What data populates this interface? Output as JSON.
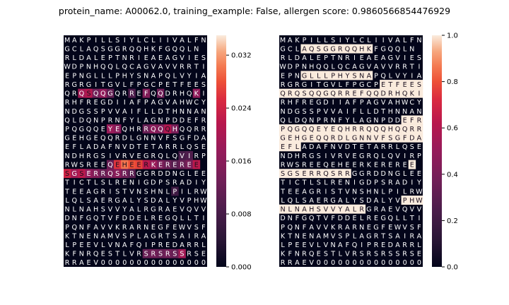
{
  "title": "protein_name: A00062.0, training_example: False, allergen score: 0.9860566854476929",
  "chart_data": [
    {
      "type": "heatmap",
      "name": "attention-heatmap",
      "colormap": "rocket",
      "vmin": 0.0,
      "vmax": 0.035,
      "colorbar_ticks": [
        0.0,
        0.008,
        0.016,
        0.024,
        0.032
      ],
      "colorbar_tick_labels": [
        "0.000",
        "0.008",
        "0.016",
        "0.024",
        "0.032"
      ],
      "rows": [
        "MAKPILLSIYLCLIIVALFN",
        "GCLAQSGGRQQHKFGQQLN ",
        "RLDALEPTNRIEAEAGVIES",
        "WDPNHQQLQCAGVAVVRRTI",
        "EPNGLLLPHYSNAPQLVYIA",
        "RGRGITGVLFPGCPETFEES",
        "QRQSQQGQRREFQQDRHQKI",
        "RHFREGDIIAFPAGVAHWCY",
        "NDGSSPVVAIFLLDTHNNAN",
        "QLDQNPRNFYLAGNPDDEFR",
        "PQGQQEYEQHRRQQQHQQRR",
        "GEHGEQQRDLGNNVFSGFDA",
        "EFLADAFNVDTETARRLQSE",
        "NDHRGSIVRVEGRQLQVIRP",
        "RWSREEQEHEERKEREREE ",
        "SGSERRQSRRGGRDDNGLEE",
        "TICTLSLRENIGDPSRADIY",
        "TEEAGRISTVNSHNLPILRW",
        "LQLSAERGALYSDALYVPHW",
        "NLNAHSVVYALRGRAEVQVV",
        "DNFGQTVFDDELREGQLLTI",
        "PQNFAVVKRARNEGFEWVSF",
        "KTNENAMVSPLAGRTSAIRA",
        "LPEEVLVNAFQIPREDARRL",
        "KFNRQESTLVRSRSRSSRSE",
        "RRAEV000000000000000"
      ],
      "highlights": [
        {
          "row": 6,
          "col": 2,
          "value": 0.019
        },
        {
          "row": 6,
          "col": 3,
          "value": 0.021
        },
        {
          "row": 6,
          "col": 4,
          "value": 0.013
        },
        {
          "row": 6,
          "col": 5,
          "value": 0.017
        },
        {
          "row": 6,
          "col": 6,
          "value": 0.011
        },
        {
          "row": 6,
          "col": 9,
          "value": 0.009
        },
        {
          "row": 6,
          "col": 11,
          "value": 0.015
        },
        {
          "row": 6,
          "col": 13,
          "value": 0.013
        },
        {
          "row": 6,
          "col": 18,
          "value": 0.017
        },
        {
          "row": 10,
          "col": 6,
          "value": 0.018
        },
        {
          "row": 10,
          "col": 7,
          "value": 0.016
        },
        {
          "row": 10,
          "col": 11,
          "value": 0.012
        },
        {
          "row": 10,
          "col": 12,
          "value": 0.016
        },
        {
          "row": 10,
          "col": 13,
          "value": 0.015
        },
        {
          "row": 10,
          "col": 14,
          "value": 0.021
        },
        {
          "row": 10,
          "col": 15,
          "value": 0.014
        },
        {
          "row": 13,
          "col": 16,
          "value": 0.008
        },
        {
          "row": 13,
          "col": 17,
          "value": 0.009
        },
        {
          "row": 14,
          "col": 6,
          "value": 0.012
        },
        {
          "row": 14,
          "col": 7,
          "value": 0.026
        },
        {
          "row": 14,
          "col": 8,
          "value": 0.03
        },
        {
          "row": 14,
          "col": 9,
          "value": 0.028
        },
        {
          "row": 14,
          "col": 10,
          "value": 0.027
        },
        {
          "row": 14,
          "col": 11,
          "value": 0.022
        },
        {
          "row": 14,
          "col": 12,
          "value": 0.018
        },
        {
          "row": 14,
          "col": 13,
          "value": 0.014
        },
        {
          "row": 14,
          "col": 14,
          "value": 0.012
        },
        {
          "row": 14,
          "col": 15,
          "value": 0.01
        },
        {
          "row": 14,
          "col": 16,
          "value": 0.012
        },
        {
          "row": 14,
          "col": 17,
          "value": 0.014
        },
        {
          "row": 14,
          "col": 18,
          "value": 0.022
        },
        {
          "row": 15,
          "col": 0,
          "value": 0.024
        },
        {
          "row": 15,
          "col": 1,
          "value": 0.019
        },
        {
          "row": 15,
          "col": 2,
          "value": 0.022
        },
        {
          "row": 15,
          "col": 3,
          "value": 0.017
        },
        {
          "row": 15,
          "col": 4,
          "value": 0.015
        },
        {
          "row": 15,
          "col": 5,
          "value": 0.012
        },
        {
          "row": 15,
          "col": 6,
          "value": 0.014
        },
        {
          "row": 15,
          "col": 7,
          "value": 0.016
        },
        {
          "row": 15,
          "col": 8,
          "value": 0.013
        },
        {
          "row": 15,
          "col": 9,
          "value": 0.01
        },
        {
          "row": 17,
          "col": 15,
          "value": 0.007
        },
        {
          "row": 24,
          "col": 11,
          "value": 0.012
        },
        {
          "row": 24,
          "col": 12,
          "value": 0.013
        },
        {
          "row": 24,
          "col": 13,
          "value": 0.012
        },
        {
          "row": 24,
          "col": 14,
          "value": 0.013
        },
        {
          "row": 24,
          "col": 15,
          "value": 0.012
        },
        {
          "row": 24,
          "col": 16,
          "value": 0.019
        }
      ]
    },
    {
      "type": "heatmap",
      "name": "binary-epitope-heatmap",
      "colormap": "rocket",
      "vmin": 0.0,
      "vmax": 1.0,
      "colorbar_ticks": [
        0.0,
        0.2,
        0.4,
        0.6,
        0.8,
        1.0
      ],
      "colorbar_tick_labels": [
        "0.0",
        "0.2",
        "0.4",
        "0.6",
        "0.8",
        "1.0"
      ],
      "rows": [
        "MAKPILLSIYLCLIIVALFN",
        "GCLAQSGGRQQHKFGQQLN ",
        "RLDALEPTNRIEAEAGVIES",
        "WDPNHQQLQCAGVAVVRRTI",
        "EPNGLLLPHYSNAPQLVYIA",
        "RGRGITGVLFPGCPETFEES",
        "QRQSQQGQRREFQQDRHQKI",
        "RHFREGDIIAFPAGVAHWCY",
        "NDGSSPVVAIFLLDTHNNAN",
        "QLDQNPRNFYLAGNPDDEFR",
        "PQGQQEYEQHRRQQQHQQRR",
        "GEHGEQQRDLGNNVFSGFDA",
        "EFLADAFNVDTETARRLQSE",
        "NDHRGSIVRVEGRQLQVIRP",
        "RWSREEQEHEERKEREREE ",
        "SGSERRQSRRGGRDDNGLEE",
        "TICTLSLRENIGDPSRADIY",
        "TEEAGRISTVNSHNLPILRW",
        "LQLSAERGALYSDALYVPHW",
        "NLNAHSVVYALRGRAEVQVV",
        "DNFGQTVFDDELREGQLLTI",
        "PQNFAVVKRARNEGFEWVSF",
        "KTNENAMVSPLAGRTSAIRA",
        "LPEEVLVNAFQIPREDARRL",
        "KFNRQESTLVRSRSRSSRSE",
        "RRAEV000000000000000"
      ],
      "highlight_ranges": [
        {
          "row": 1,
          "start": 3,
          "end": 12,
          "value": 1
        },
        {
          "row": 4,
          "start": 3,
          "end": 12,
          "value": 1
        },
        {
          "row": 5,
          "start": 14,
          "end": 19,
          "value": 1
        },
        {
          "row": 6,
          "start": 0,
          "end": 19,
          "value": 1
        },
        {
          "row": 9,
          "start": 17,
          "end": 19,
          "value": 1
        },
        {
          "row": 10,
          "start": 0,
          "end": 19,
          "value": 1
        },
        {
          "row": 11,
          "start": 0,
          "end": 19,
          "value": 1
        },
        {
          "row": 12,
          "start": 0,
          "end": 2,
          "value": 1
        },
        {
          "row": 14,
          "start": 18,
          "end": 18,
          "value": 1
        },
        {
          "row": 15,
          "start": 0,
          "end": 9,
          "value": 1
        },
        {
          "row": 18,
          "start": 17,
          "end": 19,
          "value": 1
        },
        {
          "row": 19,
          "start": 0,
          "end": 11,
          "value": 1
        }
      ]
    }
  ]
}
